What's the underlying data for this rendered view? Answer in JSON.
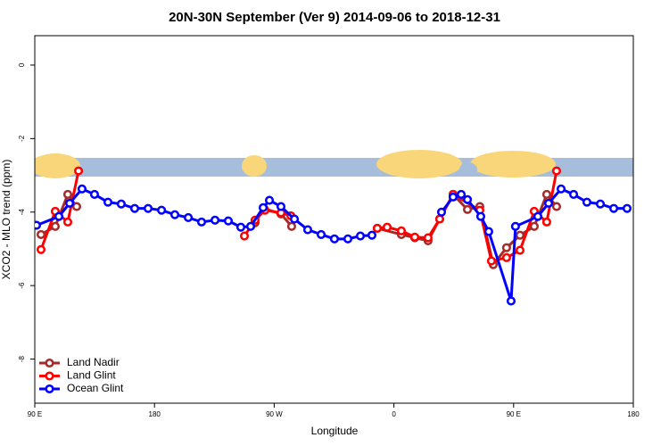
{
  "chart_data": {
    "type": "line",
    "title": "20N-30N September (Ver 9)   2014-09-06 to 2018-12-31",
    "x_label": "Longitude",
    "y_label": "XCO2 - MLO trend (ppm)",
    "xlim": [
      90,
      540
    ],
    "ylim": [
      -9.2,
      0.8
    ],
    "xticks": [
      {
        "value": 90,
        "label": "90 E"
      },
      180,
      {
        "value": 270,
        "label": "90 W"
      },
      {
        "value": 360,
        "label": "0"
      },
      {
        "value": 450,
        "label": "90 E"
      },
      {
        "value": 540,
        "label": "180"
      }
    ],
    "yticks": [
      0,
      -2,
      -4,
      -6,
      -8
    ],
    "legend": "bottom-left",
    "series": [
      {
        "name": "Land Nadir",
        "color": "#a52a2a",
        "x": [
          94.7,
          105.4,
          114.8,
          121.5,
          null,
          255.6,
          262.3,
          275.1,
          283.1,
          null,
          347.5,
          365.6,
          375.7,
          385.7,
          394.4,
          404.5,
          415.3,
          424.6,
          434.7,
          444.7,
          454.8,
          465.5,
          474.9,
          482.3
        ],
        "values": [
          -4.61,
          -4.39,
          -3.52,
          -3.85,
          null,
          -4.29,
          -3.9,
          -4.05,
          -4.39,
          null,
          -4.44,
          -4.61,
          -4.7,
          -4.78,
          -4.19,
          -3.52,
          -3.93,
          -3.85,
          -5.43,
          -4.97,
          -4.63,
          -4.39,
          -3.52,
          -3.85
        ]
      },
      {
        "name": "Land Glint",
        "color": "#ff0000",
        "x": [
          94.7,
          105.4,
          114.8,
          122.9,
          null,
          247.6,
          255.6,
          263,
          275.1,
          282.5,
          null,
          347.5,
          354.9,
          365.6,
          375.7,
          385.7,
          394.4,
          404.5,
          424.6,
          433.3,
          444.7,
          454.8,
          465.5,
          474.9,
          482.3
        ],
        "values": [
          -5.02,
          -3.98,
          -4.27,
          -2.88,
          null,
          -4.65,
          -4.22,
          -3.95,
          -4.02,
          -4.1,
          null,
          -4.44,
          -4.41,
          -4.51,
          -4.68,
          -4.7,
          -4.19,
          -3.52,
          -3.95,
          -5.33,
          -5.24,
          -5.04,
          -3.98,
          -4.27,
          -2.88
        ]
      },
      {
        "name": "Ocean Glint",
        "color": "#0000ff",
        "x": [
          91.3,
          108.1,
          116.2,
          125.5,
          134.9,
          145,
          155,
          165.1,
          175.2,
          185.3,
          195.3,
          205.4,
          215.4,
          225.5,
          235.5,
          244.9,
          252.3,
          261.7,
          266.4,
          275.1,
          285.2,
          295.2,
          305.3,
          315.3,
          325.4,
          334.8,
          343.5,
          null,
          395.8,
          404.5,
          410.6,
          415.3,
          425.3,
          431.3,
          448.1,
          451.4,
          468.2,
          476.3,
          485.7,
          495.1,
          505.1,
          515.2,
          525.3,
          535.3
        ],
        "values": [
          -4.36,
          -4.12,
          -3.76,
          -3.37,
          -3.52,
          -3.73,
          -3.78,
          -3.9,
          -3.9,
          -3.95,
          -4.07,
          -4.15,
          -4.27,
          -4.22,
          -4.24,
          -4.41,
          -4.39,
          -3.88,
          -3.68,
          -3.85,
          -4.19,
          -4.48,
          -4.61,
          -4.73,
          -4.73,
          -4.65,
          -4.63,
          null,
          -4.0,
          -3.59,
          -3.52,
          -3.66,
          -4.12,
          -4.53,
          -6.42,
          -4.39,
          -4.12,
          -3.76,
          -3.37,
          -3.52,
          -3.73,
          -3.78,
          -3.9,
          -3.9
        ]
      }
    ]
  }
}
